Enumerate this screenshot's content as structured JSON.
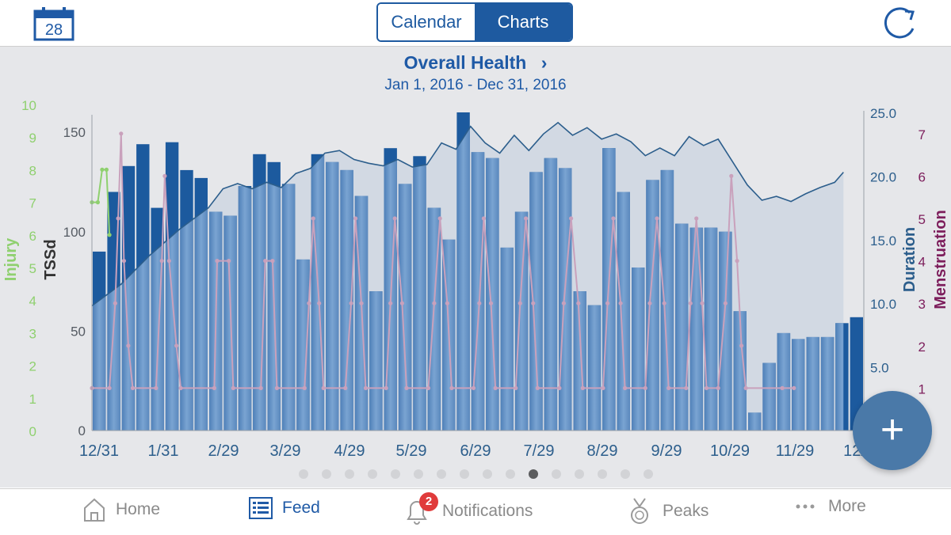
{
  "header": {
    "calendar_day": "28",
    "segments": [
      "Calendar",
      "Charts"
    ],
    "active_segment": "Charts"
  },
  "chart_header": {
    "title": "Overall Health",
    "chevron": "›",
    "date_range": "Jan 1, 2016 - Dec 31, 2016"
  },
  "pager": {
    "count": 16,
    "current": 10
  },
  "fab_label": "+",
  "tabs": [
    {
      "label": "Home",
      "icon": "house-icon"
    },
    {
      "label": "Feed",
      "icon": "list-icon"
    },
    {
      "label": "Notifications",
      "icon": "bell-icon",
      "badge": "2"
    },
    {
      "label": "Peaks",
      "icon": "medal-icon"
    },
    {
      "label": "More",
      "icon": "ellipsis-icon"
    }
  ],
  "colors": {
    "accent": "#1f5aa6",
    "bar": "#5f8fc4",
    "bar_dark": "#1c5a9e",
    "duration_line": "#2c5e8c",
    "menstruation": "#c9a1bc",
    "injury": "#8fd06f",
    "badge": "#e03b3b"
  },
  "chart_data": {
    "type": "bar",
    "x_ticks": [
      "12/31",
      "1/31",
      "2/29",
      "3/29",
      "4/29",
      "5/29",
      "6/29",
      "7/29",
      "8/29",
      "9/29",
      "10/29",
      "11/29",
      "12/"
    ],
    "axes": {
      "injury": {
        "label": "Injury",
        "range": [
          0,
          10
        ],
        "ticks": [
          "0",
          "1",
          "2",
          "3",
          "4",
          "5",
          "6",
          "7",
          "8",
          "9",
          "10"
        ]
      },
      "tssd": {
        "label": "TSSd",
        "range": [
          0,
          160
        ],
        "ticks": [
          "0",
          "50",
          "100",
          "150"
        ]
      },
      "duration": {
        "label": "Duration",
        "range": [
          0,
          25
        ],
        "ticks": [
          "5.0",
          "10.0",
          "15.0",
          "20.0",
          "25.0"
        ]
      },
      "menstruation": {
        "label": "Menstruation",
        "range": [
          0,
          7.5
        ],
        "ticks": [
          "1",
          "2",
          "3",
          "4",
          "5",
          "6",
          "7"
        ]
      }
    },
    "series": [
      {
        "name": "TSSd",
        "type": "bar",
        "values": [
          90,
          120,
          133,
          144,
          112,
          145,
          131,
          127,
          110,
          108,
          123,
          139,
          135,
          124,
          86,
          139,
          135,
          131,
          118,
          70,
          142,
          124,
          138,
          112,
          96,
          160,
          140,
          137,
          92,
          110,
          130,
          137,
          132,
          70,
          63,
          142,
          120,
          82,
          126,
          131,
          104,
          102,
          102,
          100,
          60,
          9,
          34,
          49,
          46,
          47,
          47,
          54,
          57
        ]
      },
      {
        "name": "Duration",
        "type": "area",
        "points": [
          [
            0,
            9.8
          ],
          [
            2,
            11.5
          ],
          [
            4,
            13.8
          ],
          [
            6,
            15.8
          ],
          [
            8,
            17.5
          ],
          [
            9,
            19.0
          ],
          [
            10,
            19.4
          ],
          [
            11,
            19.0
          ],
          [
            12,
            19.5
          ],
          [
            13,
            19.1
          ],
          [
            14,
            20.2
          ],
          [
            15,
            20.6
          ],
          [
            16,
            21.8
          ],
          [
            17,
            22.0
          ],
          [
            18,
            21.3
          ],
          [
            19,
            21.0
          ],
          [
            20,
            20.8
          ],
          [
            21,
            21.3
          ],
          [
            22,
            20.7
          ],
          [
            23,
            20.9
          ],
          [
            24,
            22.6
          ],
          [
            25,
            22.1
          ],
          [
            26,
            23.9
          ],
          [
            27,
            22.6
          ],
          [
            28,
            21.8
          ],
          [
            29,
            23.2
          ],
          [
            30,
            22.0
          ],
          [
            31,
            23.3
          ],
          [
            32,
            24.2
          ],
          [
            33,
            23.2
          ],
          [
            34,
            23.8
          ],
          [
            35,
            22.9
          ],
          [
            36,
            23.3
          ],
          [
            37,
            22.7
          ],
          [
            38,
            21.6
          ],
          [
            39,
            22.2
          ],
          [
            40,
            21.6
          ],
          [
            41,
            23.1
          ],
          [
            42,
            22.4
          ],
          [
            43,
            22.9
          ],
          [
            44,
            21.1
          ],
          [
            45,
            19.3
          ],
          [
            46,
            18.1
          ],
          [
            47,
            18.4
          ],
          [
            48,
            18.0
          ],
          [
            49,
            18.6
          ],
          [
            50,
            19.1
          ],
          [
            51,
            19.5
          ],
          [
            51.6,
            20.3
          ]
        ]
      },
      {
        "name": "Menstruation",
        "type": "line",
        "points": [
          [
            0,
            1
          ],
          [
            1.2,
            1
          ],
          [
            1.6,
            3
          ],
          [
            1.8,
            5
          ],
          [
            2.0,
            7
          ],
          [
            2.2,
            4
          ],
          [
            2.5,
            2
          ],
          [
            2.8,
            1
          ],
          [
            4.4,
            1
          ],
          [
            4.8,
            4
          ],
          [
            5.0,
            6
          ],
          [
            5.3,
            4
          ],
          [
            5.8,
            2
          ],
          [
            6.1,
            1
          ],
          [
            8.4,
            1
          ],
          [
            8.6,
            4
          ],
          [
            9.4,
            4
          ],
          [
            9.7,
            1
          ],
          [
            11.6,
            1
          ],
          [
            11.9,
            4
          ],
          [
            12.4,
            4
          ],
          [
            12.7,
            1
          ],
          [
            14.6,
            1
          ],
          [
            14.9,
            3
          ],
          [
            15.2,
            5
          ],
          [
            15.6,
            3
          ],
          [
            15.9,
            1
          ],
          [
            17.4,
            1
          ],
          [
            17.8,
            3
          ],
          [
            18.1,
            5
          ],
          [
            18.5,
            3
          ],
          [
            18.8,
            1
          ],
          [
            20.2,
            1
          ],
          [
            20.5,
            3
          ],
          [
            20.8,
            5
          ],
          [
            21.3,
            3
          ],
          [
            21.6,
            1
          ],
          [
            23.1,
            1
          ],
          [
            23.5,
            3
          ],
          [
            23.9,
            5
          ],
          [
            24.4,
            3
          ],
          [
            24.7,
            1
          ],
          [
            26.2,
            1
          ],
          [
            26.6,
            3
          ],
          [
            26.9,
            5
          ],
          [
            27.4,
            3
          ],
          [
            27.7,
            1
          ],
          [
            29.1,
            1
          ],
          [
            29.4,
            3
          ],
          [
            29.8,
            5
          ],
          [
            30.3,
            3
          ],
          [
            30.6,
            1
          ],
          [
            32.1,
            1
          ],
          [
            32.4,
            3
          ],
          [
            32.9,
            5
          ],
          [
            33.4,
            3
          ],
          [
            33.7,
            1
          ],
          [
            35.1,
            1
          ],
          [
            35.4,
            3
          ],
          [
            35.8,
            5
          ],
          [
            36.3,
            3
          ],
          [
            36.6,
            1
          ],
          [
            38.0,
            1
          ],
          [
            38.3,
            3
          ],
          [
            38.8,
            5
          ],
          [
            39.3,
            3
          ],
          [
            39.6,
            1
          ],
          [
            40.8,
            1
          ],
          [
            41.1,
            3
          ],
          [
            41.5,
            5
          ],
          [
            41.9,
            3
          ],
          [
            42.2,
            1
          ],
          [
            43.0,
            1
          ],
          [
            43.5,
            3
          ],
          [
            43.9,
            6
          ],
          [
            44.3,
            4
          ],
          [
            44.6,
            2
          ],
          [
            44.9,
            1
          ],
          [
            47.4,
            1
          ],
          [
            48.2,
            1
          ]
        ]
      },
      {
        "name": "Injury",
        "type": "line",
        "points": [
          [
            0,
            7
          ],
          [
            0.4,
            7
          ],
          [
            0.7,
            8
          ],
          [
            1.0,
            8
          ],
          [
            1.2,
            6
          ]
        ]
      }
    ],
    "grid": false,
    "legend": "none"
  }
}
